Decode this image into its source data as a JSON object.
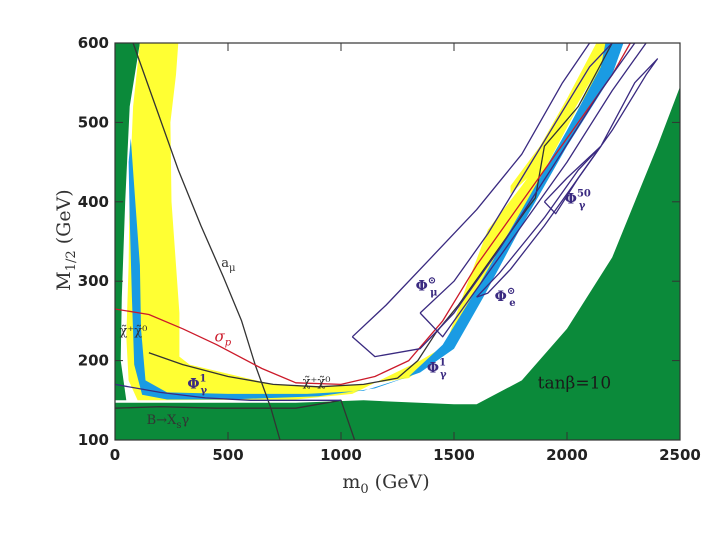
{
  "chart_data": {
    "type": "area",
    "title": "",
    "xlabel": "m0 (GeV)",
    "ylabel": "M1/2 (GeV)",
    "xlabel_parts": {
      "base": "m",
      "sub": "0",
      "unit": " (GeV)"
    },
    "ylabel_parts": {
      "base": "M",
      "sub": "1/2",
      "unit": " (GeV)"
    },
    "xlim": [
      0,
      2500
    ],
    "ylim": [
      100,
      600
    ],
    "xticks": [
      0,
      500,
      1000,
      1500,
      2000,
      2500
    ],
    "yticks": [
      100,
      200,
      300,
      400,
      500,
      600
    ],
    "grid": false,
    "colors": {
      "excluded": "#0b8a3a",
      "preferred": "#ffff33",
      "wmap": "#1a9be3",
      "contour": "#3a2a80",
      "sigma": "#cc1a2a",
      "line": "#333333"
    },
    "regions": [
      {
        "name": "excluded-top-left",
        "color": "excluded",
        "points": [
          [
            0,
            600
          ],
          [
            110,
            600
          ],
          [
            65,
            520
          ],
          [
            45,
            400
          ],
          [
            30,
            280
          ],
          [
            25,
            200
          ],
          [
            50,
            150
          ],
          [
            0,
            150
          ]
        ]
      },
      {
        "name": "excluded-bottom",
        "color": "excluded",
        "points": [
          [
            0,
            100
          ],
          [
            2500,
            100
          ],
          [
            2500,
            545
          ],
          [
            2400,
            470
          ],
          [
            2200,
            330
          ],
          [
            2000,
            240
          ],
          [
            1800,
            175
          ],
          [
            1600,
            145
          ],
          [
            1500,
            145
          ],
          [
            1100,
            150
          ],
          [
            800,
            147
          ],
          [
            0,
            147
          ]
        ]
      },
      {
        "name": "yellow-left",
        "color": "preferred",
        "points": [
          [
            110,
            600
          ],
          [
            280,
            600
          ],
          [
            270,
            560
          ],
          [
            245,
            500
          ],
          [
            250,
            400
          ],
          [
            285,
            260
          ],
          [
            285,
            205
          ],
          [
            330,
            195
          ],
          [
            700,
            170
          ],
          [
            900,
            168
          ],
          [
            1100,
            170
          ],
          [
            1300,
            178
          ],
          [
            1450,
            210
          ],
          [
            1550,
            290
          ],
          [
            1650,
            365
          ],
          [
            1800,
            420
          ],
          [
            1900,
            460
          ],
          [
            2000,
            500
          ],
          [
            2100,
            540
          ],
          [
            2230,
            600
          ],
          [
            2190,
            600
          ],
          [
            2050,
            520
          ],
          [
            1900,
            440
          ],
          [
            1750,
            360
          ],
          [
            1600,
            280
          ],
          [
            1500,
            225
          ],
          [
            1350,
            200
          ],
          [
            1050,
            158
          ],
          [
            800,
            151
          ],
          [
            200,
            150
          ],
          [
            100,
            150
          ],
          [
            60,
            175
          ],
          [
            50,
            230
          ],
          [
            60,
            320
          ],
          [
            65,
            420
          ],
          [
            80,
            520
          ]
        ]
      },
      {
        "name": "yellow-top-right",
        "color": "preferred",
        "points": [
          [
            1750,
            420
          ],
          [
            1880,
            470
          ],
          [
            2000,
            530
          ],
          [
            2130,
            600
          ],
          [
            2250,
            600
          ],
          [
            2100,
            550
          ],
          [
            1900,
            450
          ],
          [
            1750,
            410
          ]
        ]
      },
      {
        "name": "blue-band",
        "color": "wmap",
        "points": [
          [
            70,
            480
          ],
          [
            90,
            400
          ],
          [
            110,
            320
          ],
          [
            115,
            240
          ],
          [
            135,
            175
          ],
          [
            230,
            160
          ],
          [
            500,
            158
          ],
          [
            850,
            158
          ],
          [
            1100,
            162
          ],
          [
            1300,
            180
          ],
          [
            1450,
            220
          ],
          [
            1600,
            290
          ],
          [
            1800,
            390
          ],
          [
            2000,
            490
          ],
          [
            2150,
            570
          ],
          [
            2170,
            600
          ],
          [
            2250,
            600
          ],
          [
            2200,
            560
          ],
          [
            2000,
            470
          ],
          [
            1800,
            370
          ],
          [
            1630,
            280
          ],
          [
            1500,
            215
          ],
          [
            1350,
            185
          ],
          [
            1150,
            165
          ],
          [
            900,
            155
          ],
          [
            500,
            151
          ],
          [
            230,
            151
          ],
          [
            120,
            157
          ],
          [
            85,
            195
          ],
          [
            75,
            280
          ],
          [
            65,
            380
          ],
          [
            60,
            450
          ]
        ]
      }
    ],
    "curves": [
      {
        "name": "a_mu",
        "color": "line",
        "points": [
          [
            80,
            600
          ],
          [
            180,
            520
          ],
          [
            280,
            440
          ],
          [
            380,
            370
          ],
          [
            480,
            305
          ],
          [
            560,
            250
          ],
          [
            620,
            195
          ],
          [
            690,
            140
          ],
          [
            730,
            100
          ]
        ]
      },
      {
        "name": "chargino-lower",
        "color": "line",
        "points": [
          [
            0,
            140
          ],
          [
            200,
            142
          ],
          [
            450,
            140
          ],
          [
            800,
            140
          ],
          [
            1000,
            150
          ],
          [
            1060,
            100
          ]
        ]
      },
      {
        "name": "chargino-upper",
        "color": "line",
        "points": [
          [
            150,
            210
          ],
          [
            300,
            195
          ],
          [
            500,
            180
          ],
          [
            700,
            170
          ],
          [
            900,
            167
          ],
          [
            1100,
            170
          ],
          [
            1250,
            178
          ],
          [
            1340,
            200
          ],
          [
            1420,
            235
          ],
          [
            1520,
            270
          ],
          [
            1620,
            310
          ],
          [
            1720,
            350
          ],
          [
            1820,
            390
          ],
          [
            1860,
            405
          ],
          [
            1900,
            470
          ],
          [
            2050,
            520
          ],
          [
            2200,
            600
          ]
        ]
      },
      {
        "name": "sigma_p",
        "color": "sigma",
        "points": [
          [
            0,
            265
          ],
          [
            150,
            258
          ],
          [
            300,
            240
          ],
          [
            450,
            220
          ],
          [
            650,
            190
          ],
          [
            800,
            172
          ],
          [
            1000,
            170
          ],
          [
            1150,
            180
          ],
          [
            1300,
            200
          ],
          [
            1450,
            250
          ],
          [
            1600,
            320
          ],
          [
            1800,
            400
          ],
          [
            2000,
            480
          ],
          [
            2200,
            560
          ],
          [
            2280,
            600
          ]
        ]
      },
      {
        "name": "phi_mu-sun",
        "color": "contour",
        "points": [
          [
            1050,
            230
          ],
          [
            1200,
            270
          ],
          [
            1400,
            330
          ],
          [
            1600,
            390
          ],
          [
            1800,
            460
          ],
          [
            1980,
            550
          ],
          [
            2100,
            600
          ],
          [
            2300,
            600
          ],
          [
            2150,
            540
          ],
          [
            1950,
            450
          ],
          [
            1700,
            340
          ],
          [
            1500,
            260
          ],
          [
            1350,
            215
          ],
          [
            1150,
            205
          ],
          [
            1050,
            230
          ]
        ]
      },
      {
        "name": "phi_gamma-1-left",
        "color": "contour",
        "points": [
          [
            0,
            170
          ],
          [
            200,
            160
          ],
          [
            400,
            153
          ],
          [
            600,
            150
          ],
          [
            800,
            150
          ],
          [
            1000,
            150
          ]
        ]
      },
      {
        "name": "phi_gamma-1-right",
        "color": "contour",
        "points": [
          [
            1350,
            260
          ],
          [
            1500,
            300
          ],
          [
            1650,
            360
          ],
          [
            1800,
            430
          ],
          [
            1950,
            500
          ],
          [
            2100,
            570
          ],
          [
            2200,
            600
          ],
          [
            2350,
            600
          ],
          [
            2200,
            540
          ],
          [
            2000,
            450
          ],
          [
            1800,
            370
          ],
          [
            1600,
            290
          ],
          [
            1450,
            230
          ],
          [
            1350,
            260
          ]
        ]
      },
      {
        "name": "phi_gamma-50",
        "color": "contour",
        "points": [
          [
            1900,
            400
          ],
          [
            2000,
            430
          ],
          [
            2150,
            470
          ],
          [
            2300,
            550
          ],
          [
            2400,
            580
          ],
          [
            2350,
            560
          ],
          [
            2200,
            490
          ],
          [
            2050,
            430
          ],
          [
            1950,
            385
          ],
          [
            1900,
            400
          ]
        ]
      },
      {
        "name": "phi_e-sun",
        "color": "contour",
        "points": [
          [
            1600,
            280
          ],
          [
            1700,
            310
          ],
          [
            1800,
            345
          ],
          [
            1900,
            380
          ],
          [
            2050,
            440
          ],
          [
            2150,
            470
          ],
          [
            2050,
            430
          ],
          [
            1900,
            370
          ],
          [
            1750,
            315
          ],
          [
            1650,
            285
          ],
          [
            1600,
            280
          ]
        ]
      }
    ],
    "annotations": [
      {
        "text": "a",
        "sub": "μ",
        "x": 470,
        "y": 318,
        "cls": "ann"
      },
      {
        "text": "χ̃⁺χ̃⁰",
        "x": 20,
        "y": 232,
        "cls": "ann"
      },
      {
        "text": "χ̃⁺χ̃⁰",
        "x": 830,
        "y": 168,
        "cls": "ann"
      },
      {
        "text": "σ",
        "sub": "p",
        "x": 440,
        "y": 224,
        "cls": "ann-sig"
      },
      {
        "text": "Φ",
        "sub": "γ",
        "sup": "1",
        "x": 320,
        "y": 165,
        "cls": "ann-phi"
      },
      {
        "text": "Φ",
        "sub": "γ",
        "sup": "1",
        "x": 1380,
        "y": 185,
        "cls": "ann-phi"
      },
      {
        "text": "Φ",
        "sub": "μ",
        "sup": "⊙",
        "x": 1330,
        "y": 288,
        "cls": "ann-phi"
      },
      {
        "text": "Φ",
        "sub": "e",
        "sup": "⊙",
        "x": 1680,
        "y": 275,
        "cls": "ann-phi"
      },
      {
        "text": "Φ",
        "sub": "γ",
        "sup": "50",
        "x": 1990,
        "y": 398,
        "cls": "ann-phi"
      },
      {
        "text": "B→X",
        "sub": "s",
        "tail": "γ",
        "x": 140,
        "y": 120,
        "cls": "ann"
      },
      {
        "text": "tanβ=10",
        "x": 1870,
        "y": 165,
        "cls": "ann-tan"
      }
    ]
  }
}
